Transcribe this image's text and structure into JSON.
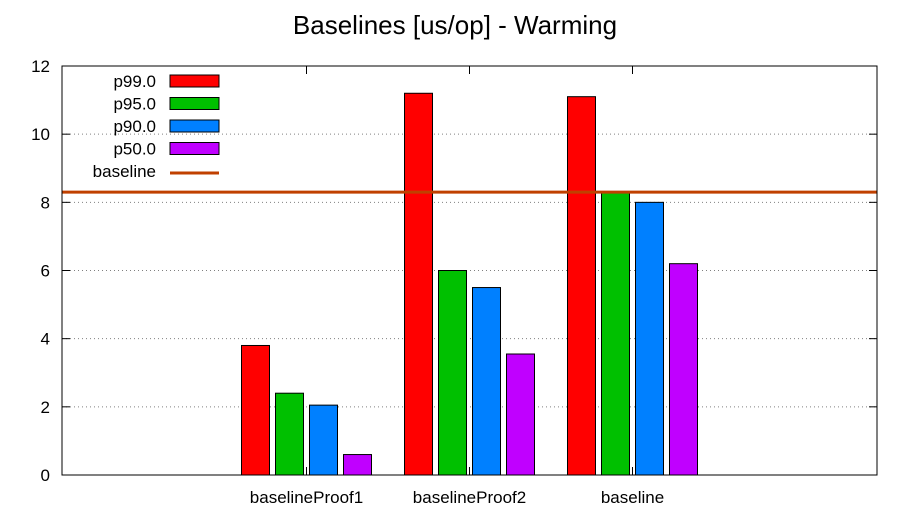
{
  "chart_data": {
    "type": "bar",
    "title": "Baselines [us/op] - Warming",
    "xlabel": "",
    "ylabel": "",
    "ylim": [
      0,
      12
    ],
    "yticks": [
      0,
      2,
      4,
      6,
      8,
      10,
      12
    ],
    "grid": "horizontal dotted",
    "legend_position": "top-left",
    "categories": [
      "baselineProof1",
      "baselineProof2",
      "baseline"
    ],
    "series": [
      {
        "name": "p99.0",
        "color": "#ff0000",
        "values": [
          3.8,
          11.2,
          11.1
        ]
      },
      {
        "name": "p95.0",
        "color": "#00c000",
        "values": [
          2.4,
          6.0,
          8.3
        ]
      },
      {
        "name": "p90.0",
        "color": "#0080ff",
        "values": [
          2.05,
          5.5,
          8.0
        ]
      },
      {
        "name": "p50.0",
        "color": "#c000ff",
        "values": [
          0.6,
          3.55,
          6.2
        ]
      }
    ],
    "baseline": {
      "name": "baseline",
      "color": "#c04000",
      "value": 8.3
    }
  }
}
